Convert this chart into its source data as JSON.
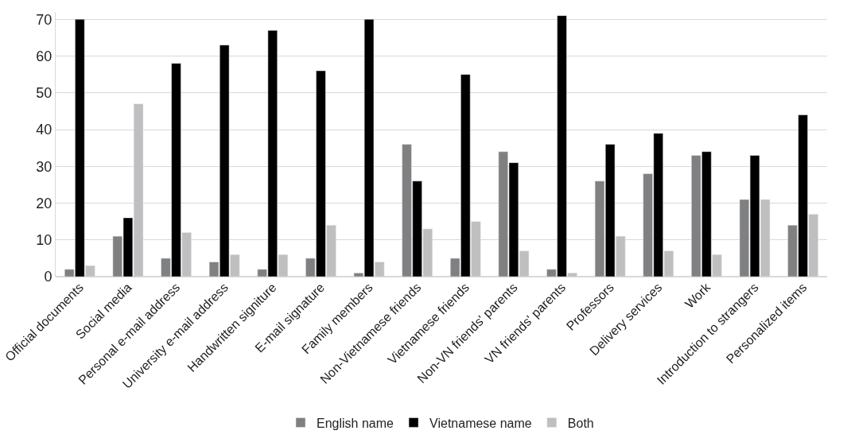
{
  "chart_data": {
    "type": "bar",
    "categories": [
      "Official documents",
      "Social media",
      "Personal e-mail address",
      "University e-mail address",
      "Handwritten signiture",
      "E-mail signature",
      "Family members",
      "Non-Vietnamese friends",
      "Vietnamese friends",
      "Non-VN friends' parents",
      "VN friends' parents",
      "Professors",
      "Delivery services",
      "Work",
      "Introduction to strangers",
      "Personalized items"
    ],
    "series": [
      {
        "name": "English name",
        "color": "#808080",
        "values": [
          2,
          11,
          5,
          4,
          2,
          5,
          1,
          36,
          5,
          34,
          2,
          26,
          28,
          33,
          21,
          14
        ]
      },
      {
        "name": "Vietnamese name",
        "color": "#000000",
        "values": [
          70,
          16,
          58,
          63,
          67,
          56,
          70,
          26,
          55,
          31,
          71,
          36,
          39,
          34,
          33,
          44
        ]
      },
      {
        "name": "Both",
        "color": "#bfbfbf",
        "values": [
          3,
          47,
          12,
          6,
          6,
          14,
          4,
          13,
          15,
          7,
          1,
          11,
          7,
          6,
          21,
          17
        ]
      }
    ],
    "ylim": [
      0,
      72
    ],
    "yticks": [
      0,
      10,
      20,
      30,
      40,
      50,
      60,
      70
    ],
    "grid": "y",
    "legend": "bottom"
  }
}
